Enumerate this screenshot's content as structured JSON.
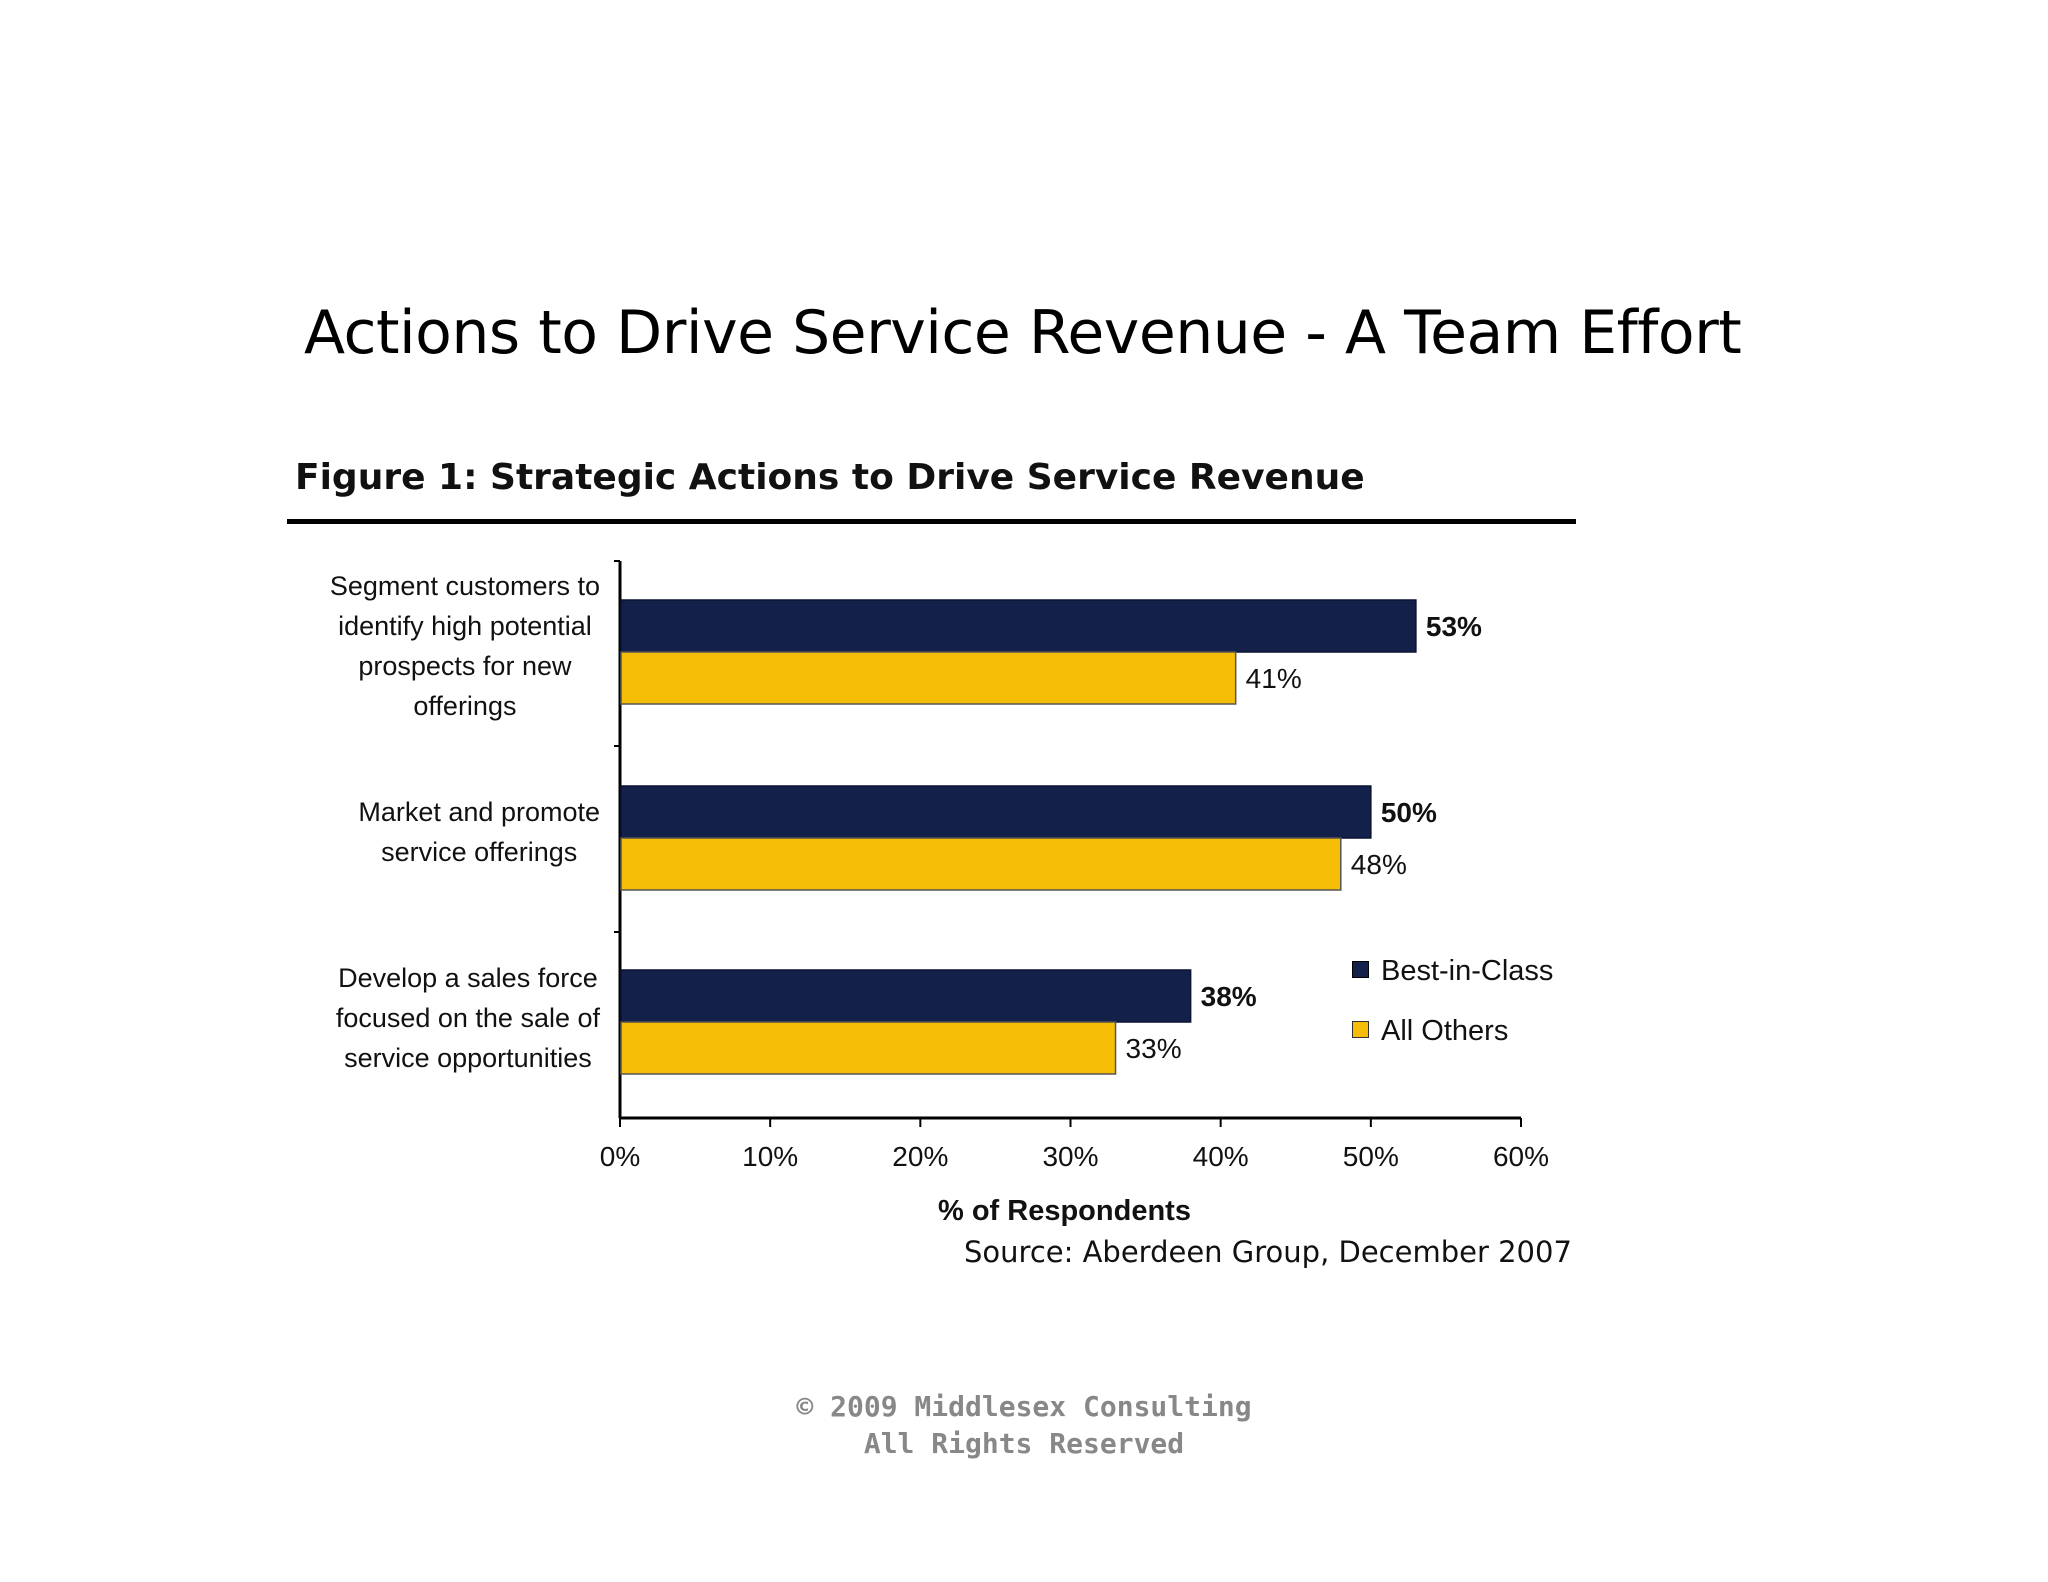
{
  "slide": {
    "title": "Actions to Drive Service Revenue - A Team Effort",
    "copyright_line1": "© 2009 Middlesex Consulting",
    "copyright_line2": "All Rights Reserved"
  },
  "colors": {
    "best_in_class": "#13214a",
    "all_others": "#f5bd06",
    "axis": "#000000"
  },
  "chart_data": {
    "type": "bar",
    "orientation": "horizontal",
    "title": "Figure 1: Strategic Actions to Drive Service Revenue",
    "categories": [
      "Segment customers to\nidentify high potential\nprospects for new\nofferings",
      "Market and promote\nservice offerings",
      "Develop a sales force\nfocused on the sale of\nservice opportunities"
    ],
    "series": [
      {
        "name": "Best-in-Class",
        "values": [
          53,
          50,
          38
        ],
        "labels": [
          "53%",
          "50%",
          "38%"
        ]
      },
      {
        "name": "All Others",
        "values": [
          41,
          48,
          33
        ],
        "labels": [
          "41%",
          "48%",
          "33%"
        ]
      }
    ],
    "xlabel": "% of Respondents",
    "xlim": [
      0,
      60
    ],
    "xticks": [
      0,
      10,
      20,
      30,
      40,
      50,
      60
    ],
    "xtick_labels": [
      "0%",
      "10%",
      "20%",
      "30%",
      "40%",
      "50%",
      "60%"
    ],
    "legend_position": "right",
    "grid": false,
    "source": "Source: Aberdeen Group, December 2007"
  }
}
